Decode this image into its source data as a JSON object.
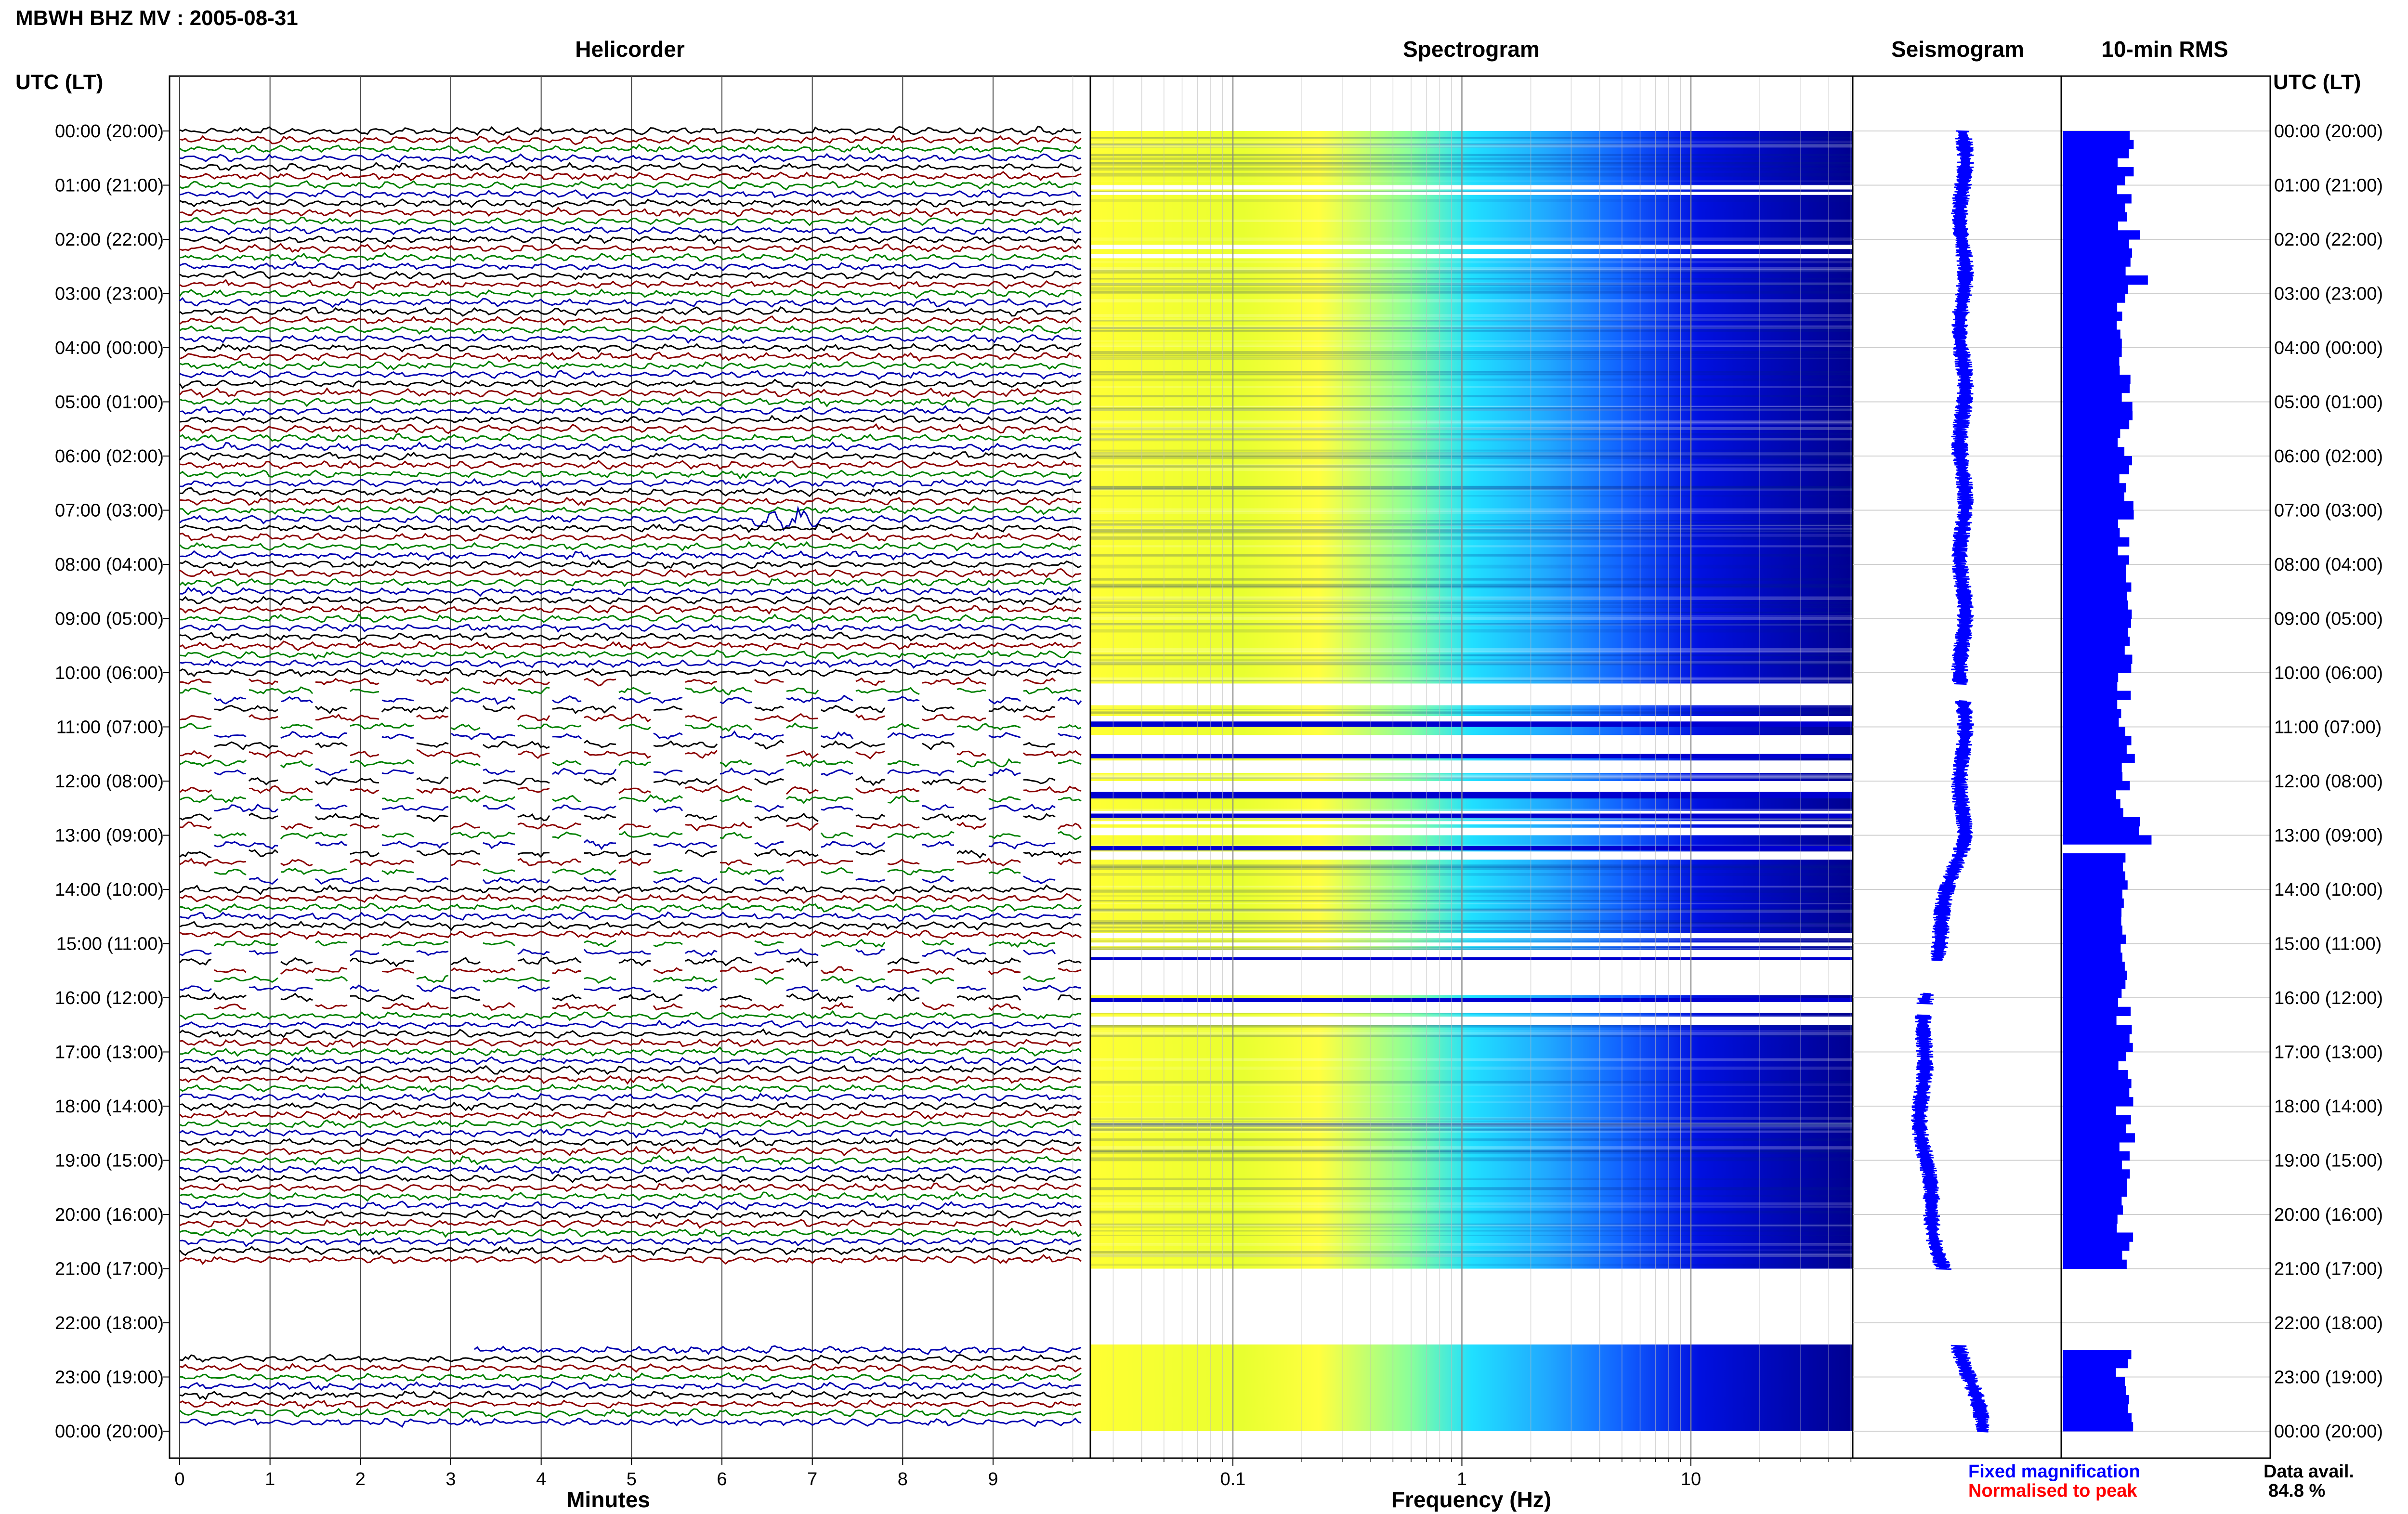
{
  "header": {
    "title": "MBWH BHZ MV : 2005-08-31",
    "utc_label": "UTC (LT)"
  },
  "panels": {
    "helicorder": "Helicorder",
    "spectrogram": "Spectrogram",
    "seismogram": "Seismogram",
    "rms": "10-min RMS"
  },
  "legend": {
    "fixed": "Fixed magnification",
    "normalised": "Normalised to peak",
    "fixed_color": "#0000ff",
    "normalised_color": "#ff0000"
  },
  "data_avail": {
    "label": "Data avail.",
    "value": "84.8 %"
  },
  "chart_data": {
    "type": "heatmap",
    "x_axes": {
      "helicorder": {
        "label": "Minutes",
        "ticks": [
          "0",
          "1",
          "2",
          "3",
          "4",
          "5",
          "6",
          "7",
          "8",
          "9"
        ],
        "range": [
          0,
          10
        ]
      },
      "spectrogram": {
        "label": "Frequency (Hz)",
        "ticks": [
          "0.1",
          "1",
          "10"
        ],
        "scale": "log",
        "range": [
          0.02,
          50
        ]
      }
    },
    "y_axis": {
      "hour_labels": [
        "00:00 (20:00)",
        "01:00 (21:00)",
        "02:00 (22:00)",
        "03:00 (23:00)",
        "04:00 (00:00)",
        "05:00 (01:00)",
        "06:00 (02:00)",
        "07:00 (03:00)",
        "08:00 (04:00)",
        "09:00 (05:00)",
        "10:00 (06:00)",
        "11:00 (07:00)",
        "12:00 (08:00)",
        "13:00 (09:00)",
        "14:00 (10:00)",
        "15:00 (11:00)",
        "16:00 (12:00)",
        "17:00 (13:00)",
        "18:00 (14:00)",
        "19:00 (15:00)",
        "20:00 (16:00)",
        "21:00 (17:00)",
        "22:00 (18:00)",
        "23:00 (19:00)",
        "00:00 (20:00)"
      ],
      "range_hours": [
        0,
        24
      ]
    },
    "trace_colors": [
      "#000000",
      "#8b0000",
      "#008000",
      "#0000b0"
    ],
    "gaps_hours": [
      [
        21.0,
        22.4
      ]
    ],
    "events": [
      {
        "time_h": 7.3,
        "minute": 6.6,
        "note": "large amplitude burst"
      }
    ],
    "rms_color": "#0000ff",
    "spectrogram_colormap": [
      "#ffff33",
      "#7fff7f",
      "#00ffff",
      "#0000ff",
      "#00007f"
    ]
  }
}
